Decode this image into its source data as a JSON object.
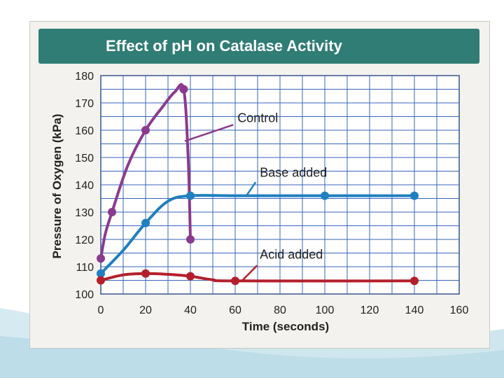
{
  "chart_data": {
    "type": "line",
    "title": "Effect of pH on Catalase Activity",
    "xlabel": "Time (seconds)",
    "ylabel": "Pressure of Oxygen (kPa)",
    "xlim": [
      0,
      160
    ],
    "ylim": [
      100,
      180
    ],
    "xticks": [
      0,
      20,
      40,
      60,
      80,
      100,
      120,
      140,
      160
    ],
    "yticks": [
      100,
      110,
      120,
      130,
      140,
      150,
      160,
      170,
      180
    ],
    "grid": true,
    "series": [
      {
        "name": "Control",
        "color": "#8b3a8f",
        "x": [
          0,
          5,
          20,
          37,
          40
        ],
        "y": [
          113,
          130,
          160,
          175,
          120
        ],
        "curve": [
          [
            0,
            113
          ],
          [
            2,
            122
          ],
          [
            5,
            130
          ],
          [
            12,
            147
          ],
          [
            20,
            160
          ],
          [
            28,
            169
          ],
          [
            33,
            174
          ],
          [
            37,
            175
          ],
          [
            39,
            150
          ],
          [
            40,
            120
          ]
        ]
      },
      {
        "name": "Base added",
        "color": "#1f7fc0",
        "x": [
          0,
          20,
          40,
          100,
          140
        ],
        "y": [
          107.5,
          126,
          136,
          136,
          136
        ],
        "curve": [
          [
            0,
            107.5
          ],
          [
            10,
            116
          ],
          [
            20,
            126
          ],
          [
            30,
            134
          ],
          [
            40,
            136
          ],
          [
            60,
            136
          ],
          [
            100,
            136
          ],
          [
            140,
            136
          ]
        ]
      },
      {
        "name": "Acid added",
        "color": "#b3202c",
        "x": [
          0,
          20,
          40,
          60,
          140
        ],
        "y": [
          105,
          107.5,
          106.5,
          104.8,
          104.8
        ],
        "curve": [
          [
            0,
            105
          ],
          [
            10,
            107
          ],
          [
            20,
            107.5
          ],
          [
            30,
            107.2
          ],
          [
            40,
            106.5
          ],
          [
            50,
            105.2
          ],
          [
            60,
            104.8
          ],
          [
            140,
            104.8
          ]
        ]
      }
    ],
    "annotations": [
      {
        "text": "Control",
        "series": "Control",
        "at": [
          61,
          163
        ]
      },
      {
        "text": "Base added",
        "series": "Base added",
        "at": [
          71,
          143
        ]
      },
      {
        "text": "Acid added",
        "series": "Acid added",
        "at": [
          71,
          113
        ]
      }
    ]
  }
}
